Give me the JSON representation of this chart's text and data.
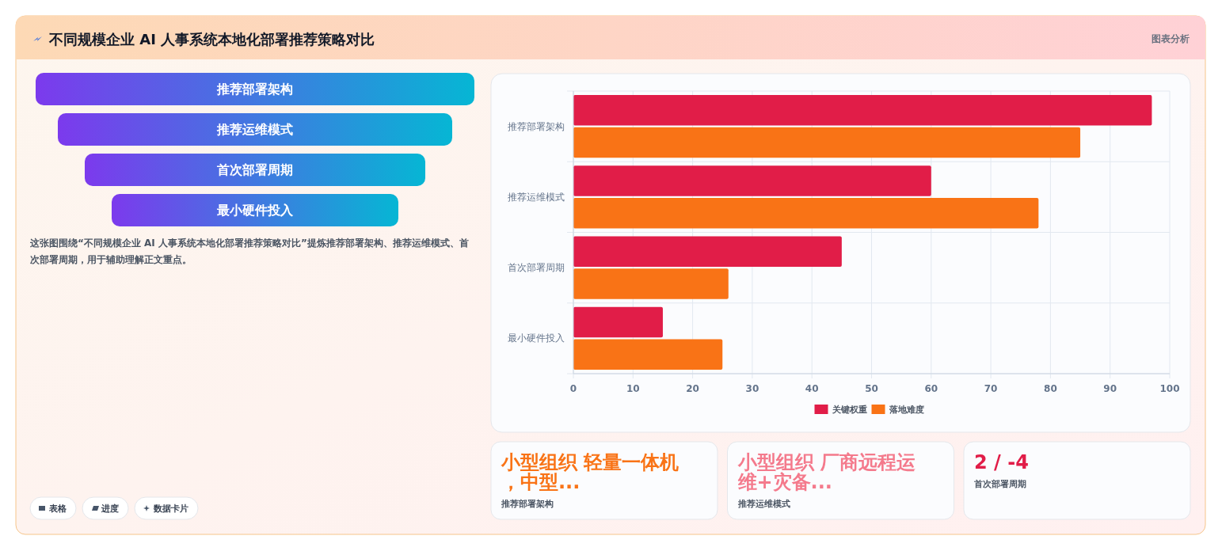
{
  "chart_data": [
    {
      "type": "other",
      "title": "不同规模企业 AI 人事系统本地化部署推荐策略对比",
      "categories": [
        "推荐部署架构",
        "推荐运维模式",
        "首次部署周期",
        "最小硬件投入"
      ],
      "annotations": [
        "图表分析",
        "这张图围绕“不同规模企业 AI 人事系统本地化部署推荐策略对比”提炼推荐部署架构、推荐运维模式、首次部署周期，用于辅助理解正文重点。",
        "表格",
        "进度",
        "数据卡片"
      ]
    },
    {
      "type": "bar",
      "orientation": "horizontal",
      "categories": [
        "推荐部署架构",
        "推荐运维模式",
        "首次部署周期",
        "最小硬件投入"
      ],
      "series": [
        {
          "name": "关键权重",
          "color": "#e11d48",
          "values": [
            97,
            60,
            45,
            15
          ]
        },
        {
          "name": "落地难度",
          "color": "#f97316",
          "values": [
            85,
            78,
            26,
            25
          ]
        }
      ],
      "xlim": [
        0,
        100
      ],
      "xticks": [
        0,
        10,
        20,
        30,
        40,
        50,
        60,
        70,
        80,
        90,
        100
      ],
      "grid": true,
      "legend": "bottom"
    },
    {
      "type": "other",
      "title": "小型组织 轻量一体机，中型...",
      "subtitle": "推荐部署架构"
    },
    {
      "type": "other",
      "title": "小型组织 厂商远程运维+灾备...",
      "subtitle": "推荐运维模式"
    },
    {
      "type": "other",
      "title": "2 / -4",
      "subtitle": "首次部署周期"
    }
  ]
}
